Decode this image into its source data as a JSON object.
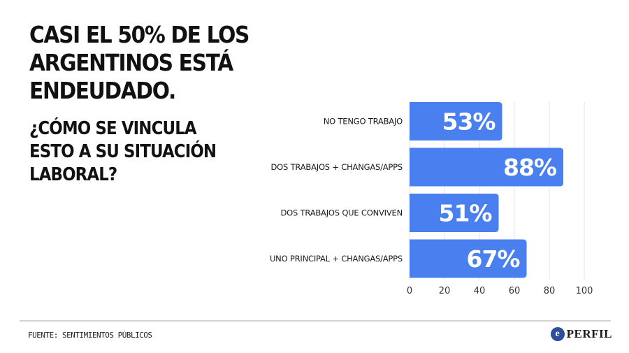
{
  "header": {
    "title": "CASI EL 50% DE LOS ARGENTINOS ESTÁ ENDEUDADO.",
    "subtitle": "¿CÓMO SE VINCULA ESTO A SU SITUACIÓN LABORAL?"
  },
  "footer": {
    "source": "FUENTE: SENTIMIENTOS PÚBLICOS",
    "logo_text": "PERFIL",
    "logo_mark": "e"
  },
  "colors": {
    "bar": "#4a7ff0",
    "grid": "#e3e3e3"
  },
  "chart_data": {
    "type": "bar",
    "orientation": "horizontal",
    "categories": [
      "NO TENGO TRABAJO",
      "DOS TRABAJOS + CHANGAS/APPS",
      "DOS TRABAJOS QUE CONVIVEN",
      "UNO PRINCIPAL + CHANGAS/APPS"
    ],
    "values": [
      53,
      88,
      51,
      67
    ],
    "value_labels": [
      "53%",
      "88%",
      "51%",
      "67%"
    ],
    "xlim": [
      0,
      100
    ],
    "xticks": [
      0,
      20,
      40,
      60,
      80,
      100
    ],
    "grid": true
  }
}
